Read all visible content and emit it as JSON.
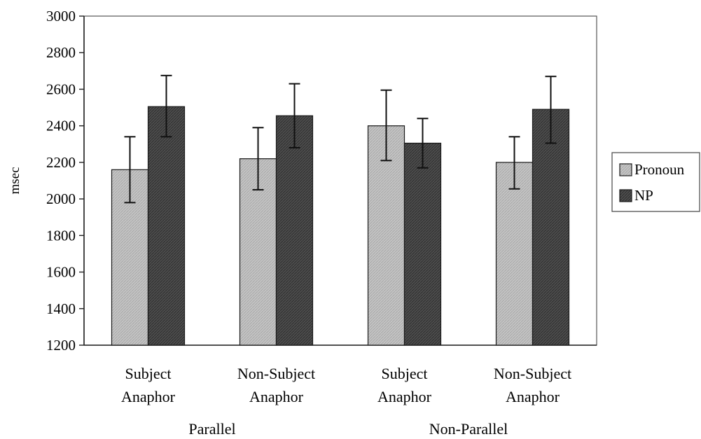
{
  "chart_data": {
    "type": "bar",
    "ylabel": "msec",
    "ylim": [
      1200,
      3000
    ],
    "yticks": [
      1200,
      1400,
      1600,
      1800,
      2000,
      2200,
      2400,
      2600,
      2800,
      3000
    ],
    "groups": [
      {
        "label": "Parallel",
        "categories": [
          0,
          1
        ]
      },
      {
        "label": "Non-Parallel",
        "categories": [
          2,
          3
        ]
      }
    ],
    "categories": [
      [
        "Subject",
        "Anaphor"
      ],
      [
        "Non-Subject",
        "Anaphor"
      ],
      [
        "Subject",
        "Anaphor"
      ],
      [
        "Non-Subject",
        "Anaphor"
      ]
    ],
    "series": [
      {
        "name": "Pronoun",
        "color": "#bcbcbc",
        "values": [
          2160,
          2220,
          2400,
          2200
        ],
        "error": [
          [
            1980,
            2340
          ],
          [
            2050,
            2390
          ],
          [
            2210,
            2595
          ],
          [
            2055,
            2340
          ]
        ]
      },
      {
        "name": "NP",
        "color": "#4a4a4a",
        "values": [
          2505,
          2455,
          2305,
          2490
        ],
        "error": [
          [
            2340,
            2675
          ],
          [
            2280,
            2630
          ],
          [
            2170,
            2440
          ],
          [
            2305,
            2670
          ]
        ]
      }
    ],
    "grid": false,
    "legend": "right"
  }
}
